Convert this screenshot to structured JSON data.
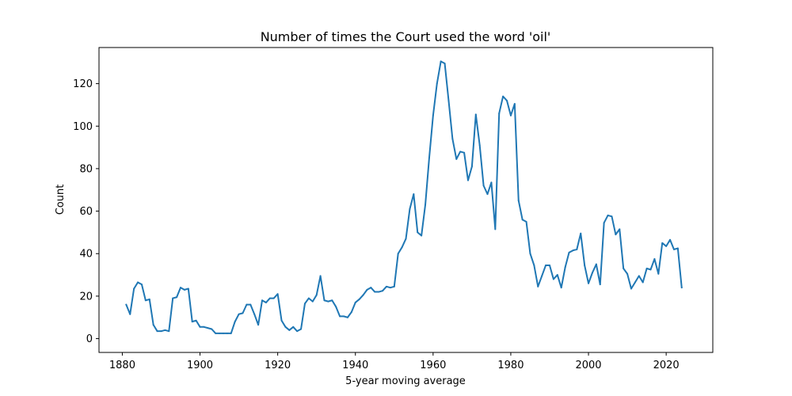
{
  "chart_data": {
    "type": "line",
    "title": "Number of times the Court used the word 'oil'",
    "xlabel": "5-year moving average",
    "ylabel": "Count",
    "xlim": [
      1874,
      2032
    ],
    "ylim": [
      -6.5,
      137
    ],
    "xticks": [
      1880,
      1900,
      1920,
      1940,
      1960,
      1980,
      2000,
      2020
    ],
    "yticks": [
      0,
      20,
      40,
      60,
      80,
      100,
      120
    ],
    "grid": false,
    "legend": "none",
    "series": [
      {
        "color": "#1f77b4",
        "x": [
          1881,
          1882,
          1883,
          1884,
          1885,
          1886,
          1887,
          1888,
          1889,
          1890,
          1891,
          1892,
          1893,
          1894,
          1895,
          1896,
          1897,
          1898,
          1899,
          1900,
          1901,
          1902,
          1903,
          1904,
          1905,
          1906,
          1907,
          1908,
          1909,
          1910,
          1911,
          1912,
          1913,
          1914,
          1915,
          1916,
          1917,
          1918,
          1919,
          1920,
          1921,
          1922,
          1923,
          1924,
          1925,
          1926,
          1927,
          1928,
          1929,
          1930,
          1931,
          1932,
          1933,
          1934,
          1935,
          1936,
          1937,
          1938,
          1939,
          1940,
          1941,
          1942,
          1943,
          1944,
          1945,
          1946,
          1947,
          1948,
          1949,
          1950,
          1951,
          1952,
          1953,
          1954,
          1955,
          1956,
          1957,
          1958,
          1959,
          1960,
          1961,
          1962,
          1963,
          1964,
          1965,
          1966,
          1967,
          1968,
          1969,
          1970,
          1971,
          1972,
          1973,
          1974,
          1975,
          1976,
          1977,
          1978,
          1979,
          1980,
          1981,
          1982,
          1983,
          1984,
          1985,
          1986,
          1987,
          1988,
          1989,
          1990,
          1991,
          1992,
          1993,
          1994,
          1995,
          1996,
          1997,
          1998,
          1999,
          2000,
          2001,
          2002,
          2003,
          2004,
          2005,
          2006,
          2007,
          2008,
          2009,
          2010,
          2011,
          2012,
          2013,
          2014,
          2015,
          2016,
          2017,
          2018,
          2019,
          2020,
          2021,
          2022,
          2023,
          2024
        ],
        "y": [
          16,
          11.5,
          23.5,
          26.5,
          25.5,
          18,
          18.5,
          6.5,
          3.5,
          3.5,
          4,
          3.5,
          19,
          19.5,
          24,
          23,
          23.5,
          8,
          8.5,
          5.5,
          5.5,
          5,
          4.5,
          2.5,
          2.5,
          2.5,
          2.5,
          2.5,
          8,
          11.5,
          12,
          16,
          16,
          11.5,
          6.5,
          18,
          17,
          19,
          19,
          21,
          8.5,
          5.5,
          4,
          5.5,
          3.5,
          4.5,
          16.5,
          19,
          17.5,
          20.5,
          29.5,
          18,
          17.5,
          18,
          15,
          10.5,
          10.5,
          10,
          12.5,
          17,
          18.5,
          20.5,
          23,
          24,
          22,
          22,
          22.5,
          24.5,
          24,
          24.5,
          40,
          43,
          47,
          61,
          68,
          50,
          48.5,
          63,
          85,
          105,
          120,
          130.5,
          129.5,
          112,
          94,
          84.5,
          88,
          87.5,
          74.5,
          81,
          105.5,
          91,
          72,
          68,
          73.5,
          51.5,
          106,
          114,
          112,
          105,
          110.5,
          65,
          56,
          55,
          40,
          34.5,
          24.5,
          29.5,
          34.5,
          34.5,
          28,
          30,
          24,
          33.5,
          40.5,
          41.5,
          42,
          49.5,
          34.5,
          26,
          31,
          35,
          25.5,
          54.5,
          58,
          57.5,
          49,
          51.5,
          33,
          30.5,
          23.5,
          26.5,
          29.5,
          26.5,
          33,
          32.5,
          37.5,
          30.5,
          45,
          43.5,
          46.5,
          42,
          42.5,
          24
        ]
      }
    ]
  }
}
